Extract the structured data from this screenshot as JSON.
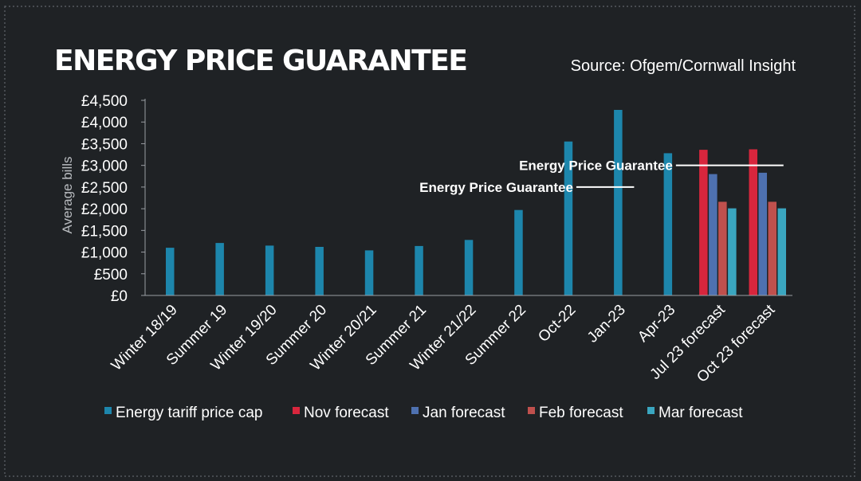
{
  "title": "ENERGY PRICE GUARANTEE",
  "source": "Source: Ofgem/Cornwall Insight",
  "colors": {
    "background": "#1f2225",
    "Energy tariff price cap": "#1d86ac",
    "Nov forecast": "#d8263d",
    "Jan forecast": "#4e71b0",
    "Feb forecast": "#bf504d",
    "Mar forecast": "#3aa6c0"
  },
  "chart_data": {
    "type": "bar",
    "ylabel": "Average bills",
    "xlabel": "",
    "ylim": [
      0,
      4500
    ],
    "yticks": [
      0,
      500,
      1000,
      1500,
      2000,
      2500,
      3000,
      3500,
      4000,
      4500
    ],
    "ytick_labels": [
      "£0",
      "£500",
      "£1,000",
      "£1,500",
      "£2,000",
      "£2,500",
      "£3,000",
      "£3,500",
      "£4,000",
      "£4,500"
    ],
    "categories": [
      "Winter 18/19",
      "Summer 19",
      "Winter 19/20",
      "Summer 20",
      "Winter 20/21",
      "Summer 21",
      "Winter 21/22",
      "Summer 22",
      "Oct-22",
      "Jan-23",
      "Apr-23",
      "Jul 23 forecast",
      "Oct 23 forecast"
    ],
    "series": [
      {
        "name": "Energy tariff price cap",
        "values": [
          1100,
          1210,
          1150,
          1120,
          1040,
          1140,
          1280,
          1970,
          3550,
          4280,
          3280,
          null,
          null
        ]
      },
      {
        "name": "Nov forecast",
        "values": [
          null,
          null,
          null,
          null,
          null,
          null,
          null,
          null,
          null,
          null,
          null,
          3360,
          3370
        ]
      },
      {
        "name": "Jan forecast",
        "values": [
          null,
          null,
          null,
          null,
          null,
          null,
          null,
          null,
          null,
          null,
          null,
          2800,
          2830
        ]
      },
      {
        "name": "Feb forecast",
        "values": [
          null,
          null,
          null,
          null,
          null,
          null,
          null,
          null,
          null,
          null,
          null,
          2160,
          2160
        ]
      },
      {
        "name": "Mar forecast",
        "values": [
          null,
          null,
          null,
          null,
          null,
          null,
          null,
          null,
          null,
          null,
          null,
          2010,
          2010
        ]
      }
    ],
    "annotations": [
      {
        "text": "Energy Price Guarantee",
        "value": 2500,
        "from_category": "Oct-22",
        "to_category": "Jan-23"
      },
      {
        "text": "Energy Price Guarantee",
        "value": 3000,
        "from_category": "Apr-23",
        "to_category": "Oct 23 forecast"
      }
    ],
    "legend": {
      "position": "bottom"
    },
    "grid": false
  }
}
